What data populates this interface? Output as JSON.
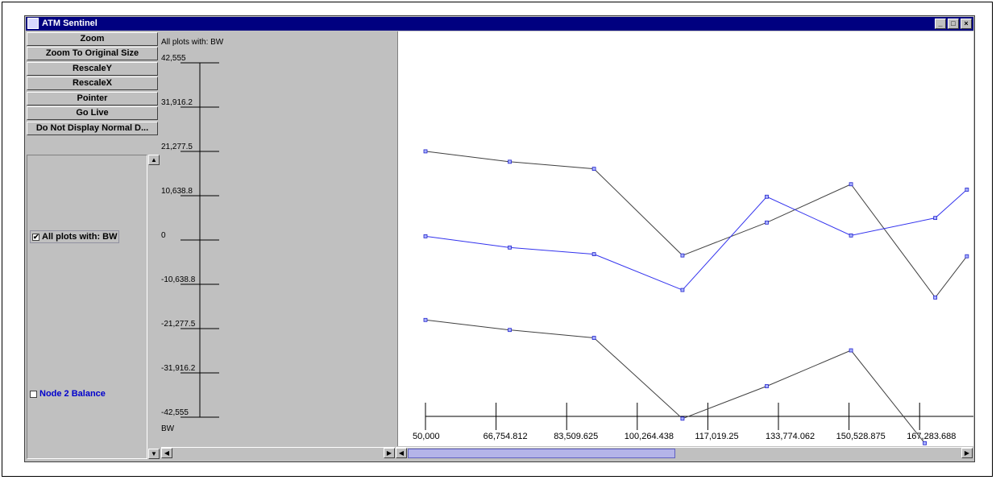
{
  "window": {
    "title": "ATM Sentinel"
  },
  "toolbar": {
    "zoom": "Zoom",
    "zoom_original": "Zoom To Original Size",
    "rescale_y": "RescaleY",
    "rescale_x": "RescaleX",
    "pointer": "Pointer",
    "go_live": "Go Live",
    "do_not_display": "Do Not Display Normal D..."
  },
  "list": {
    "items": [
      {
        "label": "All plots with: BW",
        "checked": true,
        "color": "#000000"
      },
      {
        "label": "Node 2 Balance",
        "checked": false,
        "color": "#0000cc"
      }
    ]
  },
  "y_axis": {
    "title": "All plots with: BW",
    "unit": "BW",
    "ticks": [
      "42,555",
      "31,916.2",
      "21,277.5",
      "10,638.8",
      "0",
      "-10,638.8",
      "-21,277.5",
      "-31,916.2",
      "-42,555"
    ]
  },
  "chart_data": {
    "type": "line",
    "x_tick_labels": [
      "50,000",
      "66,754.812",
      "83,509.625",
      "100,264.438",
      "117,019.25",
      "133,774.062",
      "150,528.875",
      "167,283.688"
    ],
    "ylim": [
      -42555,
      42555
    ],
    "series": [
      {
        "color": "#404040",
        "x": [
          50000,
          70000,
          90000,
          111000,
          131000,
          151000,
          171000,
          178500
        ],
        "y": [
          21100,
          18600,
          16900,
          -3900,
          4000,
          13200,
          -14000,
          -4100
        ]
      },
      {
        "color": "#3333ee",
        "x": [
          50000,
          70000,
          90000,
          111000,
          131000,
          151000,
          171000,
          178500
        ],
        "y": [
          700,
          -2000,
          -3600,
          -12200,
          10200,
          900,
          5100,
          11900
        ]
      },
      {
        "color": "#404040",
        "x": [
          50000,
          70000,
          90000,
          111000,
          131000,
          151000,
          168500
        ],
        "y": [
          -19400,
          -21800,
          -23700,
          -43100,
          -35300,
          -26700,
          -49000
        ]
      }
    ]
  }
}
